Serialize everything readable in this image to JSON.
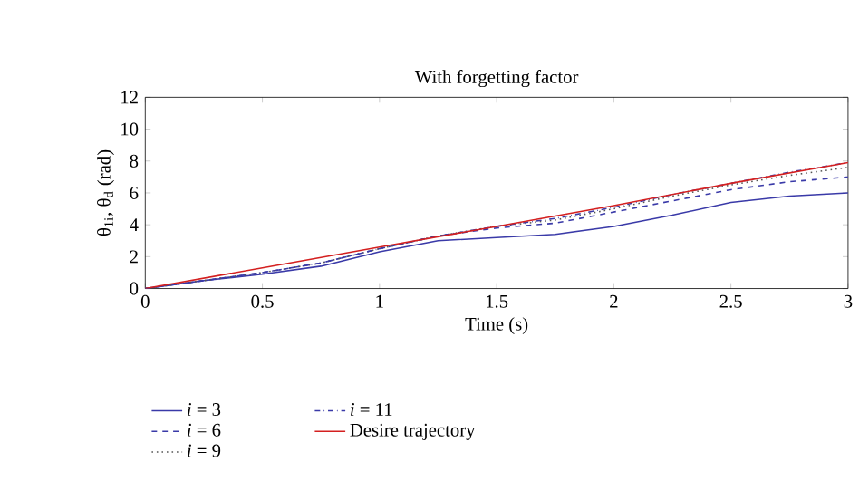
{
  "chart_data": {
    "type": "line",
    "title": "With forgetting factor",
    "xlabel": "Time (s)",
    "ylabel": "θ$_{1i}$, θ$_{d}$ (rad)",
    "xlim": [
      0,
      3
    ],
    "ylim": [
      0,
      12
    ],
    "xticks": [
      0,
      0.5,
      1,
      1.5,
      2,
      2.5,
      3
    ],
    "yticks": [
      0,
      2,
      4,
      6,
      8,
      10,
      12
    ],
    "legend": "bottom",
    "grid": false,
    "series": [
      {
        "name": "*i* = 3",
        "color": "#3a3aa8",
        "line_style": "solid",
        "x": [
          0,
          0.25,
          0.5,
          0.75,
          1,
          1.25,
          1.5,
          1.75,
          2,
          2.25,
          2.5,
          2.75,
          3
        ],
        "values": [
          0,
          0.5,
          0.9,
          1.4,
          2.3,
          3.0,
          3.2,
          3.4,
          3.9,
          4.6,
          5.4,
          5.8,
          6.0
        ]
      },
      {
        "name": "*i* = 6",
        "color": "#3a3aa8",
        "line_style": "dashed",
        "x": [
          0,
          0.25,
          0.5,
          0.75,
          1,
          1.25,
          1.5,
          1.75,
          2,
          2.25,
          2.5,
          2.75,
          3
        ],
        "values": [
          0,
          0.5,
          1.0,
          1.6,
          2.5,
          3.3,
          3.8,
          4.1,
          4.8,
          5.5,
          6.2,
          6.7,
          7.0
        ]
      },
      {
        "name": "*i* = 9",
        "color": "#555555",
        "line_style": "dotted",
        "x": [
          0,
          0.25,
          0.5,
          0.75,
          1,
          1.25,
          1.5,
          1.75,
          2,
          2.25,
          2.5,
          2.75,
          3
        ],
        "values": [
          0,
          0.5,
          1.0,
          1.6,
          2.5,
          3.3,
          3.9,
          4.3,
          5.0,
          5.8,
          6.5,
          7.1,
          7.6
        ]
      },
      {
        "name": "*i* = 11",
        "color": "#3a3aa8",
        "line_style": "dashdot",
        "x": [
          0,
          0.25,
          0.5,
          0.75,
          1,
          1.25,
          1.5,
          1.75,
          2,
          2.25,
          2.5,
          2.75,
          3
        ],
        "values": [
          0,
          0.5,
          1.0,
          1.6,
          2.5,
          3.3,
          3.9,
          4.4,
          5.1,
          5.9,
          6.6,
          7.3,
          7.9
        ]
      },
      {
        "name": "Desire trajectory",
        "color": "#d42020",
        "line_style": "solid",
        "x": [
          0,
          0.5,
          1,
          1.5,
          2,
          2.5,
          3
        ],
        "values": [
          0,
          1.3,
          2.6,
          3.9,
          5.2,
          6.6,
          7.9
        ]
      }
    ]
  }
}
